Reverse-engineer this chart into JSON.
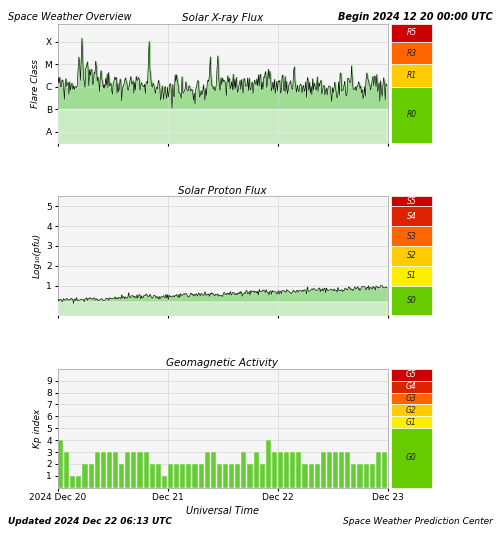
{
  "title_left": "Space Weather Overview",
  "title_right": "Begin 2024 12 20 00:00 UTC",
  "footer_left": "Updated 2024 Dec 22 06:13 UTC",
  "footer_right": "Space Weather Prediction Center",
  "xlabel": "Universal Time",
  "xticklabels": [
    "2024 Dec 20",
    "Dec 21",
    "Dec 22",
    "Dec 23"
  ],
  "xtick_positions": [
    0,
    144,
    288,
    432
  ],
  "total_points": 432,
  "panel1_title": "Solar X-ray Flux",
  "panel1_ylabel": "Flare Class",
  "panel1_yticks": [
    1,
    2,
    3,
    4,
    5
  ],
  "panel1_yticklabels": [
    "A",
    "B",
    "C",
    "M",
    "X"
  ],
  "panel1_ylim": [
    0.5,
    5.8
  ],
  "panel1_scale_labels": [
    "R5",
    "R3",
    "R1",
    "R0"
  ],
  "panel1_scale_colors": [
    "#cc0000",
    "#ff6600",
    "#ffcc00",
    "#66cc00"
  ],
  "panel1_scale_bounds": [
    5.8,
    5.0,
    4.0,
    3.0,
    0.5
  ],
  "panel2_title": "Solar Proton Flux",
  "panel2_ylabel": "Log₁₀(pfu)",
  "panel2_yticks": [
    1,
    2,
    3,
    4,
    5
  ],
  "panel2_yticklabels": [
    "1",
    "2",
    "3",
    "4",
    "5"
  ],
  "panel2_ylim": [
    -0.5,
    5.5
  ],
  "panel2_scale_labels": [
    "S5",
    "S4",
    "S3",
    "S2",
    "S1",
    "S0"
  ],
  "panel2_scale_colors": [
    "#cc0000",
    "#dd2200",
    "#ff6600",
    "#ffcc00",
    "#ffee00",
    "#66cc00"
  ],
  "panel2_scale_bounds": [
    5.5,
    5.0,
    4.0,
    3.0,
    2.0,
    1.0,
    -0.5
  ],
  "panel3_title": "Geomagnetic Activity",
  "panel3_ylabel": "Kp index",
  "panel3_yticks": [
    1,
    2,
    3,
    4,
    5,
    6,
    7,
    8,
    9
  ],
  "panel3_yticklabels": [
    "1",
    "2",
    "3",
    "4",
    "5",
    "6",
    "7",
    "8",
    "9"
  ],
  "panel3_ylim": [
    0,
    10
  ],
  "panel3_scale_labels": [
    "G5",
    "G4",
    "G3",
    "G2",
    "G1",
    "G0"
  ],
  "panel3_scale_colors": [
    "#cc0000",
    "#dd2200",
    "#ff6600",
    "#ffcc00",
    "#ffee00",
    "#66cc00"
  ],
  "panel3_scale_bounds": [
    10,
    9,
    8,
    7,
    6,
    5,
    0
  ],
  "bg_color": "#ffffff",
  "plot_bg": "#f5f5f5",
  "grid_color": "#cccccc",
  "line_color": "#000000",
  "fill_green_dark": "#44bb22",
  "fill_green_light": "#cceecc",
  "kp_bar_color": "#66cc33",
  "kp_values": [
    4,
    3,
    1,
    1,
    2,
    2,
    3,
    3,
    3,
    3,
    2,
    3,
    3,
    3,
    3,
    2,
    2,
    1,
    2,
    2,
    2,
    2,
    2,
    2,
    3,
    3,
    2,
    2,
    2,
    2,
    3,
    2,
    3,
    2,
    4,
    3,
    3,
    3,
    3,
    3,
    2,
    2,
    2,
    3,
    3,
    3,
    3,
    3,
    2,
    2,
    2,
    2,
    3,
    3
  ]
}
